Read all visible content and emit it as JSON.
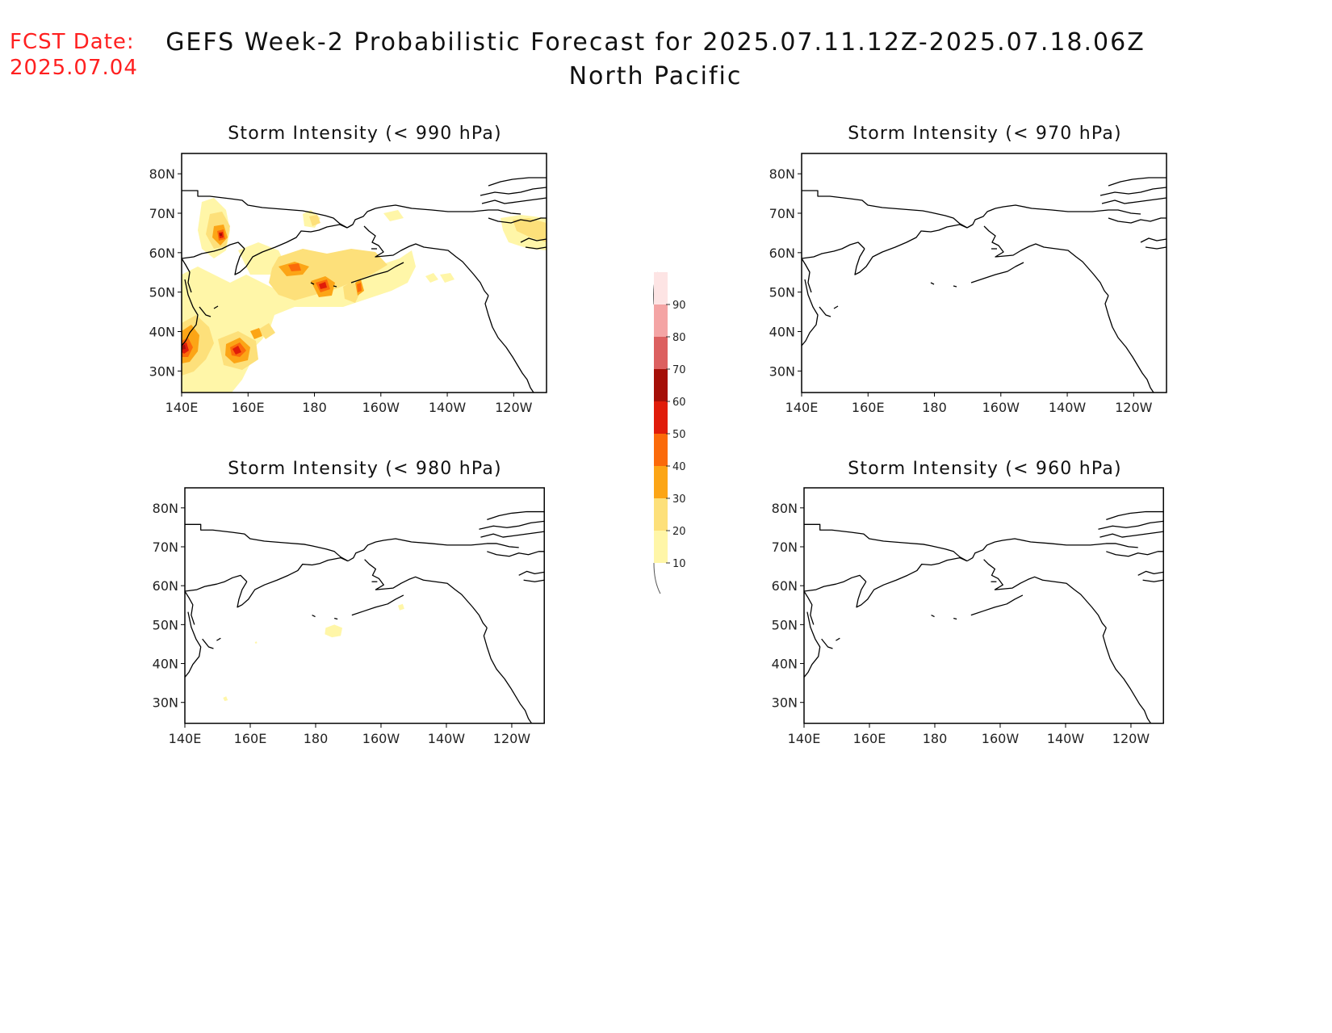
{
  "header": {
    "fcst_label": "FCST Date:",
    "fcst_date": "2025.07.04",
    "title_line1": "GEFS Week-2 Probabilistic Forecast for 2025.07.11.12Z-2025.07.18.06Z",
    "title_line2": "North Pacific"
  },
  "panels": [
    {
      "id": "p990",
      "title": "Storm Intensity (< 990 hPa)",
      "has_fill": true
    },
    {
      "id": "p970",
      "title": "Storm Intensity (< 970 hPa)",
      "has_fill": false
    },
    {
      "id": "p980",
      "title": "Storm Intensity (< 980 hPa)",
      "has_fill": true
    },
    {
      "id": "p960",
      "title": "Storm Intensity (< 960 hPa)",
      "has_fill": false
    }
  ],
  "axes": {
    "lat_labels": [
      "80N",
      "70N",
      "60N",
      "50N",
      "40N",
      "30N"
    ],
    "lon_labels": [
      "140E",
      "160E",
      "180",
      "160W",
      "140W",
      "120W"
    ]
  },
  "colorbar": {
    "levels": [
      "10",
      "20",
      "30",
      "40",
      "50",
      "60",
      "70",
      "80",
      "90"
    ],
    "colors": [
      "#fff6a8",
      "#fde07a",
      "#fca516",
      "#fb6a0a",
      "#e01c0a",
      "#a50f08",
      "#dc6060",
      "#f4a4a4",
      "#fde4e4"
    ]
  }
}
